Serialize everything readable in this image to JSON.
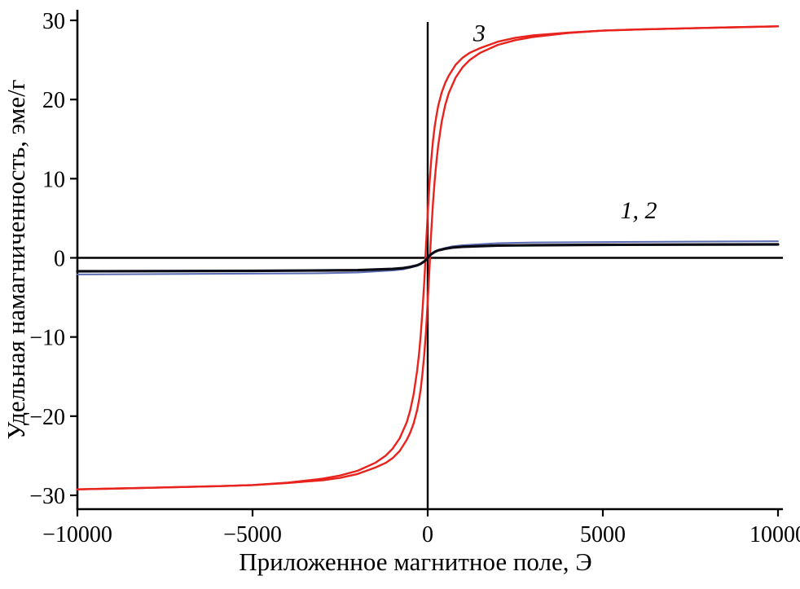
{
  "figure": {
    "background": "#ffffff",
    "axis_color": "#000000"
  },
  "chart_data": {
    "type": "line",
    "title": "",
    "xlabel": "Приложенное магнитное поле, Э",
    "ylabel": "Удельная намагниченность, эме/г",
    "xlim": [
      -10000,
      10000
    ],
    "ylim": [
      -30,
      30
    ],
    "grid": false,
    "legend": "none (inline curve labels)",
    "xticks": [
      {
        "v": -10000,
        "label": "−10000"
      },
      {
        "v": -5000,
        "label": "−5000"
      },
      {
        "v": 0,
        "label": "0"
      },
      {
        "v": 5000,
        "label": "5000"
      },
      {
        "v": 10000,
        "label": "10000"
      }
    ],
    "yticks": [
      {
        "v": -30,
        "label": "−30"
      },
      {
        "v": -20,
        "label": "−20"
      },
      {
        "v": -10,
        "label": "−10"
      },
      {
        "v": 0,
        "label": "0"
      },
      {
        "v": 10,
        "label": "10"
      },
      {
        "v": 20,
        "label": "20"
      },
      {
        "v": 30,
        "label": "30"
      }
    ],
    "annotations": [
      {
        "text": "3",
        "x": 1300,
        "y": 27.4
      },
      {
        "text": "1, 2",
        "x": 5500,
        "y": 5.0
      }
    ],
    "series": [
      {
        "name": "curve-3-descending-branch",
        "color": "#e8231d",
        "width": 2.4,
        "points": [
          [
            10000,
            29.25
          ],
          [
            8000,
            29.05
          ],
          [
            6000,
            28.85
          ],
          [
            5000,
            28.7
          ],
          [
            4000,
            28.45
          ],
          [
            3000,
            28.1
          ],
          [
            2500,
            27.8
          ],
          [
            2000,
            27.3
          ],
          [
            1500,
            26.5
          ],
          [
            1200,
            25.9
          ],
          [
            1000,
            25.3
          ],
          [
            800,
            24.4
          ],
          [
            600,
            23.0
          ],
          [
            500,
            22.1
          ],
          [
            400,
            20.9
          ],
          [
            300,
            19.2
          ],
          [
            250,
            18.0
          ],
          [
            200,
            16.6
          ],
          [
            150,
            14.7
          ],
          [
            100,
            12.3
          ],
          [
            50,
            9.3
          ],
          [
            0,
            5.5
          ],
          [
            -30,
            3.0
          ],
          [
            -60,
            0.5
          ],
          [
            -80,
            -1.5
          ],
          [
            -100,
            -3.2
          ],
          [
            -150,
            -6.8
          ],
          [
            -200,
            -9.8
          ],
          [
            -250,
            -12.2
          ],
          [
            -300,
            -14.2
          ],
          [
            -400,
            -17.2
          ],
          [
            -500,
            -19.3
          ],
          [
            -600,
            -20.8
          ],
          [
            -800,
            -22.8
          ],
          [
            -1000,
            -24.1
          ],
          [
            -1200,
            -25.0
          ],
          [
            -1500,
            -25.9
          ],
          [
            -2000,
            -26.9
          ],
          [
            -2500,
            -27.5
          ],
          [
            -3000,
            -27.9
          ],
          [
            -4000,
            -28.4
          ],
          [
            -5000,
            -28.7
          ],
          [
            -6000,
            -28.85
          ],
          [
            -8000,
            -29.05
          ],
          [
            -10000,
            -29.25
          ]
        ]
      },
      {
        "name": "curve-3-ascending-branch",
        "color": "#e8231d",
        "width": 2.4,
        "points": [
          [
            -10000,
            -29.25
          ],
          [
            -8000,
            -29.05
          ],
          [
            -6000,
            -28.85
          ],
          [
            -5000,
            -28.7
          ],
          [
            -4000,
            -28.45
          ],
          [
            -3000,
            -28.1
          ],
          [
            -2500,
            -27.8
          ],
          [
            -2000,
            -27.3
          ],
          [
            -1500,
            -26.5
          ],
          [
            -1200,
            -25.9
          ],
          [
            -1000,
            -25.3
          ],
          [
            -800,
            -24.4
          ],
          [
            -600,
            -23.0
          ],
          [
            -500,
            -22.1
          ],
          [
            -400,
            -20.9
          ],
          [
            -300,
            -19.2
          ],
          [
            -250,
            -18.0
          ],
          [
            -200,
            -16.6
          ],
          [
            -150,
            -14.7
          ],
          [
            -100,
            -12.3
          ],
          [
            -50,
            -9.3
          ],
          [
            0,
            -5.5
          ],
          [
            30,
            -3.0
          ],
          [
            60,
            -0.5
          ],
          [
            80,
            1.5
          ],
          [
            100,
            3.2
          ],
          [
            150,
            6.8
          ],
          [
            200,
            9.8
          ],
          [
            250,
            12.2
          ],
          [
            300,
            14.2
          ],
          [
            400,
            17.2
          ],
          [
            500,
            19.3
          ],
          [
            600,
            20.8
          ],
          [
            800,
            22.8
          ],
          [
            1000,
            24.1
          ],
          [
            1200,
            25.0
          ],
          [
            1500,
            25.9
          ],
          [
            2000,
            26.9
          ],
          [
            2500,
            27.5
          ],
          [
            3000,
            27.9
          ],
          [
            4000,
            28.4
          ],
          [
            5000,
            28.7
          ],
          [
            6000,
            28.85
          ],
          [
            8000,
            29.05
          ],
          [
            10000,
            29.25
          ]
        ]
      },
      {
        "name": "curve-2",
        "color": "#5c6cb4",
        "width": 2.0,
        "points": [
          [
            -10000,
            -2.1
          ],
          [
            -5000,
            -2.0
          ],
          [
            -3000,
            -1.95
          ],
          [
            -2000,
            -1.85
          ],
          [
            -1000,
            -1.6
          ],
          [
            -700,
            -1.45
          ],
          [
            -500,
            -1.25
          ],
          [
            -300,
            -1.0
          ],
          [
            -200,
            -0.8
          ],
          [
            -100,
            -0.45
          ],
          [
            0,
            0
          ],
          [
            100,
            0.45
          ],
          [
            200,
            0.8
          ],
          [
            300,
            1.0
          ],
          [
            500,
            1.25
          ],
          [
            700,
            1.45
          ],
          [
            1000,
            1.6
          ],
          [
            2000,
            1.85
          ],
          [
            3000,
            1.95
          ],
          [
            5000,
            2.0
          ],
          [
            10000,
            2.1
          ]
        ]
      },
      {
        "name": "curve-1",
        "color": "#0b0b16",
        "width": 3.2,
        "points": [
          [
            -10000,
            -1.7
          ],
          [
            -5000,
            -1.65
          ],
          [
            -3000,
            -1.6
          ],
          [
            -2000,
            -1.55
          ],
          [
            -1000,
            -1.4
          ],
          [
            -700,
            -1.3
          ],
          [
            -500,
            -1.15
          ],
          [
            -300,
            -0.95
          ],
          [
            -200,
            -0.75
          ],
          [
            -100,
            -0.45
          ],
          [
            -50,
            -0.25
          ],
          [
            0,
            0
          ],
          [
            50,
            0.25
          ],
          [
            100,
            0.45
          ],
          [
            200,
            0.75
          ],
          [
            300,
            0.95
          ],
          [
            500,
            1.15
          ],
          [
            700,
            1.3
          ],
          [
            1000,
            1.4
          ],
          [
            2000,
            1.55
          ],
          [
            3000,
            1.6
          ],
          [
            5000,
            1.65
          ],
          [
            10000,
            1.7
          ]
        ]
      }
    ]
  }
}
